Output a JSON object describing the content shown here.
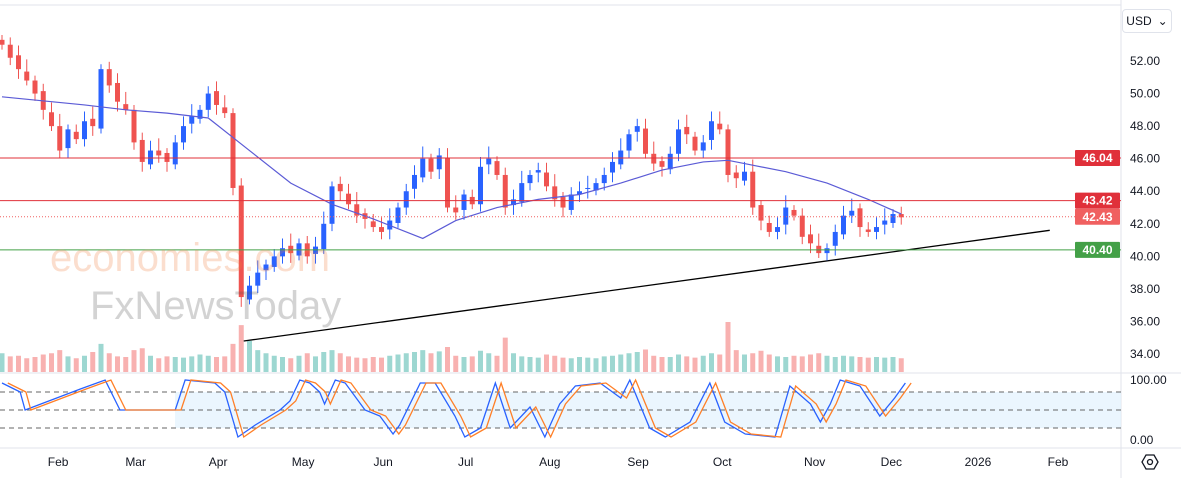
{
  "currency": {
    "label": "USD",
    "chevron": "⌄"
  },
  "watermark": {
    "line1": "economies.com",
    "line2": "FxNewsToday"
  },
  "settings_icon": "gear-icon",
  "colors": {
    "up": "#2962ff",
    "down": "#ef5350",
    "ma": "#5b5bd6",
    "k": "#2962ff",
    "d": "#ff7f27",
    "resistance": "#e0303a",
    "support": "#43a047",
    "current": "#f06060"
  },
  "chart_data": {
    "type": "candlestick",
    "title": "",
    "price_axis": {
      "ticks": [
        "52.00",
        "50.00",
        "48.00",
        "46.00",
        "44.00",
        "42.00",
        "40.00",
        "38.00",
        "36.00",
        "34.00"
      ],
      "range": [
        33,
        54
      ]
    },
    "time_axis": [
      {
        "label": "Feb",
        "i": 6.8
      },
      {
        "label": "Mar",
        "i": 16.2
      },
      {
        "label": "Apr",
        "i": 26.2
      },
      {
        "label": "May",
        "i": 36.5
      },
      {
        "label": "Jun",
        "i": 46.2
      },
      {
        "label": "Jul",
        "i": 56.2
      },
      {
        "label": "Aug",
        "i": 66.4
      },
      {
        "label": "Sep",
        "i": 77.1
      },
      {
        "label": "Oct",
        "i": 87.3
      },
      {
        "label": "Nov",
        "i": 98.5
      },
      {
        "label": "Dec",
        "i": 107.8
      },
      {
        "label": "2026",
        "i": 118.3
      },
      {
        "label": "Feb",
        "i": 128
      }
    ],
    "closes": [
      53,
      52.2,
      51.5,
      50.8,
      50,
      49,
      48,
      46.5,
      47.8,
      47.2,
      48.3,
      48,
      51.5,
      50.5,
      49.5,
      49,
      47,
      45.8,
      46.5,
      46.2,
      45.8,
      47,
      48,
      48.6,
      49,
      50,
      49.3,
      48.8,
      44.2,
      37.5,
      38.2,
      39,
      39.5,
      40,
      40.5,
      40.2,
      40.8,
      40,
      40.6,
      42,
      44.3,
      44,
      43.2,
      42.5,
      42.3,
      41.8,
      41.5,
      42.2,
      43,
      44,
      45,
      46,
      45.2,
      46.2,
      43,
      42.7,
      43.8,
      43.2,
      45.5,
      46,
      45,
      43,
      43.5,
      44.5,
      45,
      45.3,
      44.3,
      43.5,
      43,
      43.8,
      44,
      44.2,
      44.5,
      45,
      45.8,
      46.5,
      47.5,
      48,
      46.3,
      45.7,
      45.5,
      46.3,
      47.8,
      47.5,
      46.5,
      47,
      48.3,
      47.8,
      45,
      44.8,
      45.2,
      43,
      42.2,
      41.5,
      41.8,
      43,
      42.5,
      41.2,
      40.8,
      40.2,
      40.5,
      41.5,
      42.5,
      42.8,
      41.8,
      41.5,
      41.8,
      42.2,
      42.6,
      42.4
    ],
    "volume": [
      3,
      2.5,
      2.6,
      2.2,
      2.4,
      2.8,
      3,
      3.5,
      2.5,
      2.2,
      2.6,
      3.2,
      4.5,
      3,
      2.5,
      2.4,
      3.5,
      3.8,
      2.6,
      2.2,
      2.5,
      2.4,
      2.3,
      2.5,
      2.8,
      2.6,
      2.4,
      2.5,
      4.5,
      7.5,
      5,
      3.5,
      3,
      2.6,
      2.4,
      2.2,
      2.6,
      3,
      2.5,
      3.2,
      3.5,
      3,
      2.5,
      2.3,
      2.2,
      2.4,
      2.3,
      2.6,
      2.8,
      3,
      3.2,
      3.5,
      3,
      3.3,
      4,
      2.6,
      2.4,
      2.5,
      3.4,
      3,
      2.6,
      5.5,
      3,
      2.5,
      2.4,
      2.3,
      2.8,
      2.6,
      2.3,
      2.2,
      2.4,
      2.3,
      2.2,
      2.5,
      2.6,
      2.8,
      3,
      3.2,
      3.6,
      2.6,
      2.4,
      2.4,
      2.8,
      2.5,
      2.3,
      2.6,
      3,
      2.8,
      8,
      3.5,
      2.8,
      3,
      3.4,
      2.8,
      2.5,
      2.4,
      2.6,
      2.5,
      2.8,
      3,
      2.6,
      2.4,
      2.6,
      2.5,
      2.4,
      2.3,
      2.4,
      2.3,
      2.4,
      2.2
    ],
    "ma": [
      [
        0,
        49.8
      ],
      [
        10,
        49.3
      ],
      [
        15,
        49
      ],
      [
        20,
        48.8
      ],
      [
        25,
        48.5
      ],
      [
        30,
        46.5
      ],
      [
        35,
        44.5
      ],
      [
        40,
        43.2
      ],
      [
        45,
        42.3
      ],
      [
        51,
        41.1
      ],
      [
        55,
        42.2
      ],
      [
        60,
        43
      ],
      [
        65,
        43.5
      ],
      [
        70,
        43.8
      ],
      [
        75,
        44.5
      ],
      [
        80,
        45.3
      ],
      [
        85,
        45.8
      ],
      [
        88,
        45.9
      ],
      [
        90,
        45.7
      ],
      [
        95,
        45.2
      ],
      [
        100,
        44.5
      ],
      [
        105,
        43.5
      ],
      [
        109,
        42.6
      ]
    ],
    "stochastic": {
      "axis": [
        "100.00",
        "0.00"
      ],
      "bands": [
        80,
        50,
        20
      ],
      "k": [
        [
          0,
          95
        ],
        [
          2.2,
          80
        ],
        [
          2.8,
          50
        ],
        [
          9.5,
          85
        ],
        [
          12.5,
          100
        ],
        [
          14.3,
          50
        ],
        [
          21,
          50
        ],
        [
          22.2,
          100
        ],
        [
          25.8,
          95
        ],
        [
          27,
          80
        ],
        [
          28.6,
          5
        ],
        [
          30.7,
          25
        ],
        [
          33.7,
          50
        ],
        [
          34.9,
          65
        ],
        [
          36.1,
          100
        ],
        [
          37.3,
          95
        ],
        [
          38.5,
          80
        ],
        [
          39.1,
          60
        ],
        [
          40.4,
          100
        ],
        [
          41.6,
          95
        ],
        [
          44,
          50
        ],
        [
          45.8,
          40
        ],
        [
          47.4,
          10
        ],
        [
          48.2,
          25
        ],
        [
          50.7,
          95
        ],
        [
          52.5,
          95
        ],
        [
          54.9,
          40
        ],
        [
          56.1,
          5
        ],
        [
          58,
          20
        ],
        [
          59.8,
          95
        ],
        [
          61.6,
          20
        ],
        [
          64,
          55
        ],
        [
          65.8,
          5
        ],
        [
          67.6,
          60
        ],
        [
          69.5,
          90
        ],
        [
          72.5,
          95
        ],
        [
          75,
          70
        ],
        [
          76.1,
          100
        ],
        [
          78.5,
          20
        ],
        [
          80.4,
          5
        ],
        [
          83.4,
          30
        ],
        [
          85.8,
          95
        ],
        [
          87.6,
          30
        ],
        [
          90.1,
          10
        ],
        [
          93.7,
          5
        ],
        [
          95.5,
          90
        ],
        [
          98,
          60
        ],
        [
          99.2,
          30
        ],
        [
          100.4,
          60
        ],
        [
          101.6,
          100
        ],
        [
          104,
          90
        ],
        [
          106.4,
          40
        ],
        [
          108.2,
          70
        ],
        [
          109.5,
          95
        ]
      ]
    },
    "levels": [
      {
        "price": 46.04,
        "label": "46.04",
        "style": "solid",
        "kind": "resistance"
      },
      {
        "price": 43.42,
        "label": "43.42",
        "style": "solid",
        "kind": "resistance"
      },
      {
        "price": 42.43,
        "label": "42.43",
        "style": "dotted",
        "kind": "current"
      },
      {
        "price": 40.4,
        "label": "40.40",
        "style": "solid",
        "kind": "support"
      }
    ],
    "trendline": [
      [
        29.3,
        34.8
      ],
      [
        127,
        41.6
      ]
    ]
  }
}
